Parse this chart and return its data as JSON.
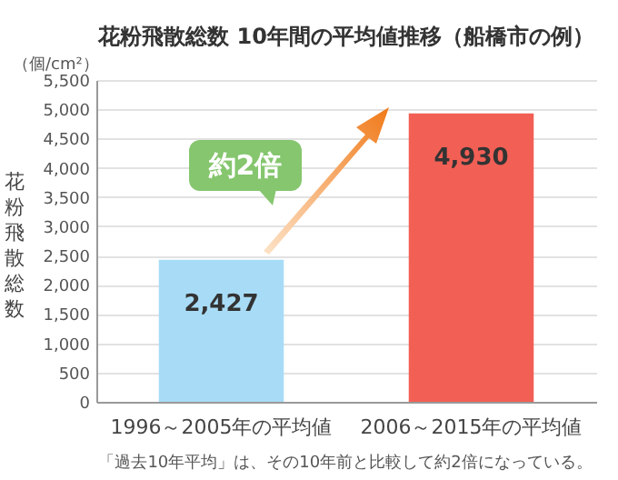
{
  "chart_data": {
    "type": "bar",
    "title": "花粉飛散総数 10年間の平均値推移（船橋市の例）",
    "ylabel": "花粉飛散総数",
    "categories": [
      "1996～2005年の平均値",
      "2006～2015年の平均値"
    ],
    "values": [
      2427,
      4930
    ],
    "colors": [
      "#a8dcf6",
      "#f25f55"
    ],
    "ylim": [
      0,
      5500
    ],
    "yticks": [
      0,
      500,
      {
        "value": 1000,
        "label": "1,000"
      },
      {
        "value": 1500,
        "label": "1,500"
      },
      {
        "value": 2000,
        "label": "2,000"
      },
      {
        "value": 2500,
        "label": "2,500"
      },
      {
        "value": 3000,
        "label": "3,000"
      },
      {
        "value": 3500,
        "label": "3,500"
      },
      {
        "value": 4000,
        "label": "4,000"
      },
      {
        "value": 4500,
        "label": "4,500"
      },
      {
        "value": 5000,
        "label": "5,000"
      },
      {
        "value": 5500,
        "label": "5,500"
      }
    ],
    "grid": "y",
    "value_labels": [
      "2,427",
      "4,930"
    ],
    "annotations": [
      "（個/cm²）",
      "約2倍",
      "「過去10年平均」は、その10年前と比較して約2倍になっている。"
    ]
  }
}
